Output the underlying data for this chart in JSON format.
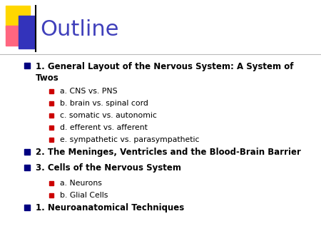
{
  "title": "Outline",
  "title_color": "#4040BB",
  "title_fontsize": 22,
  "background_color": "#FFFFFF",
  "bullet_color_main": "#000080",
  "bullet_color_sub": "#CC0000",
  "items": [
    {
      "level": 1,
      "text": "1. General Layout of the Nervous System: A System of Twos",
      "two_line": true,
      "bold": true,
      "fontsize": 8.5
    },
    {
      "level": 2,
      "text": "a. CNS vs. PNS",
      "bold": false,
      "fontsize": 7.8
    },
    {
      "level": 2,
      "text": "b. brain vs. spinal cord",
      "bold": false,
      "fontsize": 7.8
    },
    {
      "level": 2,
      "text": "c. somatic vs. autonomic",
      "bold": false,
      "fontsize": 7.8
    },
    {
      "level": 2,
      "text": "d. efferent vs. afferent",
      "bold": false,
      "fontsize": 7.8
    },
    {
      "level": 2,
      "text": "e. sympathetic vs. parasympathetic",
      "bold": false,
      "fontsize": 7.8
    },
    {
      "level": 1,
      "text": "2. The Meninges, Ventricles and the Blood-Brain Barrier",
      "two_line": false,
      "bold": true,
      "fontsize": 8.5
    },
    {
      "level": 1,
      "text": "3. Cells of the Nervous System",
      "two_line": false,
      "bold": true,
      "fontsize": 8.5
    },
    {
      "level": 2,
      "text": "a. Neurons",
      "bold": false,
      "fontsize": 7.8
    },
    {
      "level": 2,
      "text": "b. Glial Cells",
      "bold": false,
      "fontsize": 7.8
    },
    {
      "level": 1,
      "text": "1. Neuroanatomical Techniques",
      "two_line": false,
      "bold": true,
      "fontsize": 8.5
    }
  ]
}
